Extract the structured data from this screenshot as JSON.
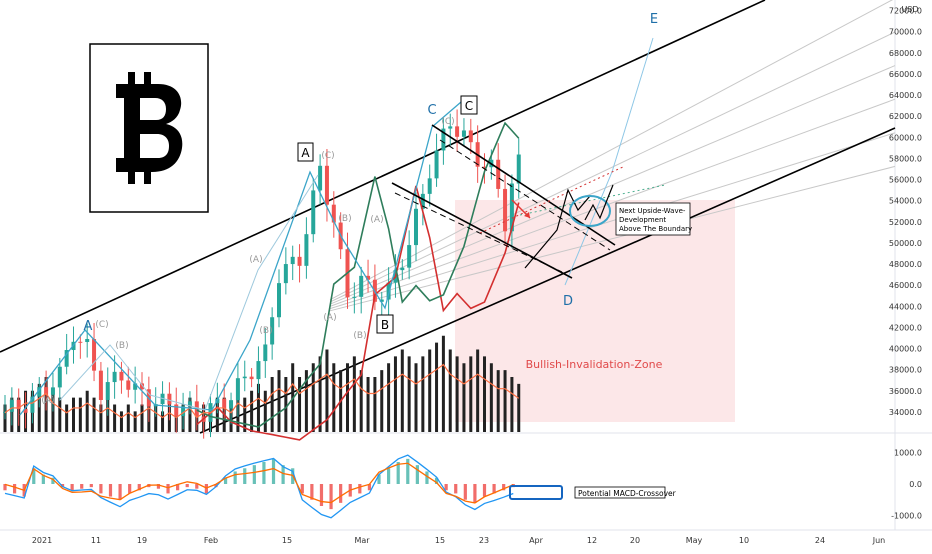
{
  "currency": "USD",
  "chart_data": {
    "type": "candlestick",
    "price_axis": {
      "ticks": [
        "34000.0",
        "36000.0",
        "38000.0",
        "40000.0",
        "42000.0",
        "44000.0",
        "46000.0",
        "48000.0",
        "50000.0",
        "52000.0",
        "54000.0",
        "56000.0",
        "58000.0",
        "60000.0",
        "62000.0",
        "64000.0",
        "66000.0",
        "68000.0",
        "70000.0",
        "72000.0"
      ],
      "range": [
        32000,
        73000
      ]
    },
    "macd_axis": {
      "ticks": [
        "1000.0",
        "0.0",
        "-1000.0"
      ],
      "range": [
        -1400,
        1400
      ]
    },
    "time_axis": {
      "ticks": [
        "2021",
        "11",
        "19",
        "Feb",
        "15",
        "Mar",
        "15",
        "23",
        "Apr",
        "12",
        "20",
        "May",
        "10",
        "24",
        "Jun"
      ]
    },
    "price_path": [
      [
        0,
        34000
      ],
      [
        4,
        35000
      ],
      [
        8,
        37500
      ],
      [
        10,
        41500
      ],
      [
        12,
        40000
      ],
      [
        14,
        36000
      ],
      [
        17,
        37500
      ],
      [
        19,
        36000
      ],
      [
        22,
        35000
      ],
      [
        25,
        34500
      ],
      [
        29,
        33800
      ],
      [
        33,
        35500
      ],
      [
        36,
        38000
      ],
      [
        38,
        39500
      ],
      [
        40,
        47000
      ],
      [
        43,
        48500
      ],
      [
        46,
        57000
      ],
      [
        48,
        52000
      ],
      [
        50,
        45000
      ],
      [
        52,
        46500
      ],
      [
        54,
        45000
      ],
      [
        56,
        45500
      ],
      [
        59,
        50000
      ],
      [
        62,
        57000
      ],
      [
        65,
        61500
      ],
      [
        67,
        60000
      ],
      [
        69,
        58000
      ],
      [
        71,
        57000
      ],
      [
        72,
        55000
      ],
      [
        73,
        52000
      ],
      [
        74,
        55500
      ],
      [
        75,
        57500
      ]
    ],
    "volume_range": [
      0,
      16000
    ],
    "volume": [
      4,
      5,
      5,
      6,
      6,
      7,
      8,
      6,
      5,
      4,
      5,
      5,
      6,
      5,
      4,
      5,
      4,
      3,
      4,
      3,
      4,
      5,
      4,
      3,
      4,
      3,
      4,
      5,
      3,
      4,
      4,
      5,
      5,
      4,
      6,
      5,
      6,
      7,
      6,
      8,
      9,
      8,
      10,
      8,
      9,
      10,
      11,
      12,
      10,
      9,
      10,
      11,
      9,
      8,
      8,
      9,
      10,
      11,
      12,
      11,
      10,
      11,
      12,
      13,
      14,
      12,
      11,
      10,
      11,
      12,
      11,
      10,
      9,
      9,
      8,
      7
    ],
    "macd_hist": [
      -200,
      -300,
      -400,
      500,
      300,
      200,
      -100,
      -200,
      -150,
      -100,
      -300,
      -400,
      -500,
      -300,
      -200,
      -100,
      -150,
      -300,
      -200,
      -100,
      -150,
      -300,
      -100,
      200,
      400,
      500,
      600,
      700,
      800,
      600,
      500,
      -300,
      -500,
      -700,
      -800,
      -600,
      -400,
      -300,
      -200,
      300,
      500,
      700,
      800,
      600,
      400,
      200,
      -200,
      -300,
      -500,
      -600,
      -400,
      -300,
      -200,
      -100
    ],
    "annotations": {
      "wave_labels": [
        "A",
        "(C)",
        "(B)",
        "(A)",
        "(B)",
        "(A)",
        "A",
        "(C)",
        "(B)",
        "(A)",
        "(B)",
        "(A)",
        "(C)",
        "B",
        "C",
        "(C)",
        "C",
        "D",
        "E"
      ],
      "bullish_zone": "Bullish-Invalidation-Zone",
      "upside_note": [
        "Next Upside-Wave-",
        "Development",
        "Above The Boundary"
      ],
      "macd_note": "Potential MACD-Crossover"
    }
  }
}
